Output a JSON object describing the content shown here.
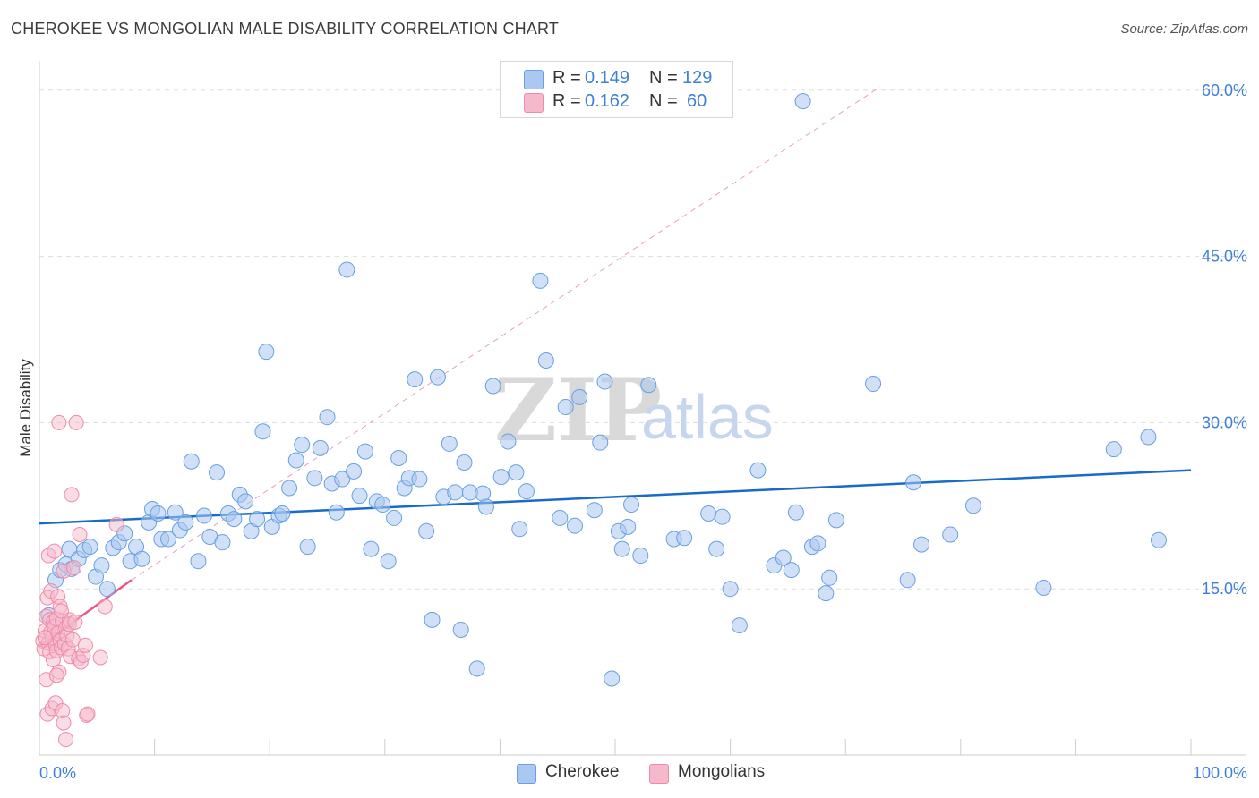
{
  "header": {
    "title": "CHEROKEE VS MONGOLIAN MALE DISABILITY CORRELATION CHART",
    "source": "Source: ZipAtlas.com"
  },
  "watermark": {
    "zip": "ZIP",
    "atlas": "atlas"
  },
  "legend": {
    "rows": [
      {
        "r_label": "R =",
        "r_value": "0.149",
        "n_label": "N =",
        "n_value": "129"
      },
      {
        "r_label": "R =",
        "r_value": "0.162",
        "n_label": "N =",
        "n_value": "60"
      }
    ]
  },
  "bottom_legend": {
    "series_1": "Cherokee",
    "series_2": "Mongolians"
  },
  "colors": {
    "cherokee_fill": "#aac8f0",
    "cherokee_stroke": "#6a9fe0",
    "cherokee_line": "#1a6acc",
    "mongolian_fill": "#f6b9cc",
    "mongolian_stroke": "#ee8aaa",
    "mongolian_line": "#e8558a",
    "grid": "#dddddd",
    "tick_label": "#3f7fd8"
  },
  "chart_data": {
    "type": "scatter",
    "title": "CHEROKEE VS MONGOLIAN MALE DISABILITY CORRELATION CHART",
    "xlabel": "",
    "ylabel": "Male Disability",
    "xlim": [
      0,
      100
    ],
    "ylim": [
      0,
      62
    ],
    "x_tick_labels": [
      "0.0%",
      "100.0%"
    ],
    "y_ticks": [
      15,
      30,
      45,
      60
    ],
    "y_tick_labels": [
      "15.0%",
      "30.0%",
      "45.0%",
      "60.0%"
    ],
    "series": [
      {
        "name": "Cherokee",
        "R": 0.149,
        "N": 129,
        "trend": {
          "x": [
            0,
            100
          ],
          "y": [
            20.9,
            25.7
          ],
          "style": "solid"
        },
        "points": [
          [
            0.8,
            12.6
          ],
          [
            1.4,
            15.8
          ],
          [
            1.8,
            16.7
          ],
          [
            2.3,
            17.2
          ],
          [
            2.6,
            18.6
          ],
          [
            2.8,
            16.8
          ],
          [
            3.4,
            17.7
          ],
          [
            3.9,
            18.5
          ],
          [
            4.4,
            18.8
          ],
          [
            4.9,
            16.1
          ],
          [
            5.4,
            17.1
          ],
          [
            5.9,
            15.0
          ],
          [
            6.4,
            18.7
          ],
          [
            6.9,
            19.2
          ],
          [
            7.4,
            20.0
          ],
          [
            7.9,
            17.5
          ],
          [
            8.4,
            18.8
          ],
          [
            8.9,
            17.7
          ],
          [
            9.5,
            21.0
          ],
          [
            9.8,
            22.2
          ],
          [
            10.3,
            21.8
          ],
          [
            10.6,
            19.5
          ],
          [
            11.2,
            19.5
          ],
          [
            11.8,
            21.9
          ],
          [
            12.2,
            20.3
          ],
          [
            12.7,
            21.0
          ],
          [
            13.2,
            26.5
          ],
          [
            13.8,
            17.5
          ],
          [
            14.3,
            21.6
          ],
          [
            14.8,
            19.7
          ],
          [
            15.4,
            25.5
          ],
          [
            15.9,
            19.2
          ],
          [
            16.4,
            21.8
          ],
          [
            16.9,
            21.3
          ],
          [
            17.4,
            23.5
          ],
          [
            17.9,
            22.9
          ],
          [
            18.4,
            20.2
          ],
          [
            18.9,
            21.3
          ],
          [
            19.4,
            29.2
          ],
          [
            19.7,
            36.4
          ],
          [
            20.2,
            20.6
          ],
          [
            20.8,
            21.6
          ],
          [
            21.1,
            21.8
          ],
          [
            21.7,
            24.1
          ],
          [
            22.3,
            26.6
          ],
          [
            22.8,
            28.0
          ],
          [
            23.3,
            18.8
          ],
          [
            23.9,
            25.0
          ],
          [
            24.4,
            27.7
          ],
          [
            25.0,
            30.5
          ],
          [
            25.4,
            24.5
          ],
          [
            25.8,
            21.9
          ],
          [
            26.3,
            24.9
          ],
          [
            26.7,
            43.8
          ],
          [
            27.3,
            25.6
          ],
          [
            27.8,
            23.4
          ],
          [
            28.3,
            27.4
          ],
          [
            28.8,
            18.6
          ],
          [
            29.3,
            22.9
          ],
          [
            29.8,
            22.6
          ],
          [
            30.3,
            17.5
          ],
          [
            30.8,
            21.4
          ],
          [
            31.2,
            26.8
          ],
          [
            31.7,
            24.1
          ],
          [
            32.1,
            25.0
          ],
          [
            32.6,
            33.9
          ],
          [
            33.0,
            24.9
          ],
          [
            33.6,
            20.2
          ],
          [
            34.1,
            12.2
          ],
          [
            34.6,
            34.1
          ],
          [
            35.1,
            23.3
          ],
          [
            35.6,
            28.1
          ],
          [
            36.1,
            23.7
          ],
          [
            36.6,
            11.3
          ],
          [
            36.9,
            26.4
          ],
          [
            37.4,
            23.7
          ],
          [
            38.0,
            7.8
          ],
          [
            38.5,
            23.6
          ],
          [
            38.8,
            22.4
          ],
          [
            39.4,
            33.3
          ],
          [
            40.1,
            25.1
          ],
          [
            40.7,
            28.3
          ],
          [
            41.4,
            25.5
          ],
          [
            41.7,
            20.4
          ],
          [
            42.3,
            23.8
          ],
          [
            43.5,
            42.8
          ],
          [
            44.0,
            35.6
          ],
          [
            45.2,
            21.4
          ],
          [
            45.7,
            31.4
          ],
          [
            46.5,
            20.7
          ],
          [
            46.9,
            32.3
          ],
          [
            48.2,
            22.1
          ],
          [
            48.7,
            28.2
          ],
          [
            49.1,
            33.7
          ],
          [
            49.7,
            6.9
          ],
          [
            50.3,
            20.2
          ],
          [
            50.6,
            18.6
          ],
          [
            51.1,
            20.6
          ],
          [
            51.4,
            22.6
          ],
          [
            52.2,
            18.0
          ],
          [
            52.9,
            33.4
          ],
          [
            55.1,
            19.5
          ],
          [
            56.0,
            19.6
          ],
          [
            58.1,
            21.8
          ],
          [
            58.8,
            18.6
          ],
          [
            59.3,
            21.5
          ],
          [
            60.0,
            15.0
          ],
          [
            60.8,
            11.7
          ],
          [
            62.4,
            25.7
          ],
          [
            63.8,
            17.1
          ],
          [
            64.6,
            17.8
          ],
          [
            65.3,
            16.7
          ],
          [
            65.7,
            21.9
          ],
          [
            66.3,
            59.0
          ],
          [
            67.1,
            18.8
          ],
          [
            67.6,
            19.1
          ],
          [
            68.3,
            14.6
          ],
          [
            68.6,
            16.0
          ],
          [
            69.2,
            21.2
          ],
          [
            72.4,
            33.5
          ],
          [
            75.4,
            15.8
          ],
          [
            75.9,
            24.6
          ],
          [
            76.6,
            19.0
          ],
          [
            79.1,
            19.9
          ],
          [
            81.1,
            22.5
          ],
          [
            87.2,
            15.1
          ],
          [
            93.3,
            27.6
          ],
          [
            96.3,
            28.7
          ],
          [
            97.2,
            19.4
          ]
        ]
      },
      {
        "name": "Mongolians",
        "R": 0.162,
        "N": 60,
        "trend": {
          "x": [
            0,
            8
          ],
          "y": [
            9.8,
            15.8
          ],
          "style": "solid"
        },
        "trend_extension": {
          "x": [
            8,
            73
          ],
          "y": [
            15.8,
            60.3
          ],
          "style": "dashed"
        },
        "points": [
          [
            0.3,
            10.3
          ],
          [
            0.4,
            9.6
          ],
          [
            0.5,
            11.2
          ],
          [
            0.6,
            12.5
          ],
          [
            0.6,
            6.8
          ],
          [
            0.7,
            3.7
          ],
          [
            0.7,
            14.2
          ],
          [
            0.8,
            10.1
          ],
          [
            0.8,
            18.0
          ],
          [
            0.9,
            9.3
          ],
          [
            0.9,
            12.2
          ],
          [
            1.0,
            11.1
          ],
          [
            1.0,
            14.8
          ],
          [
            1.1,
            4.2
          ],
          [
            1.1,
            10.6
          ],
          [
            1.2,
            12.0
          ],
          [
            1.2,
            8.6
          ],
          [
            1.3,
            18.4
          ],
          [
            1.3,
            11.6
          ],
          [
            1.4,
            10.0
          ],
          [
            1.4,
            4.7
          ],
          [
            1.5,
            12.3
          ],
          [
            1.5,
            9.4
          ],
          [
            1.6,
            14.3
          ],
          [
            1.6,
            11.0
          ],
          [
            1.7,
            7.5
          ],
          [
            1.7,
            30.0
          ],
          [
            1.8,
            10.3
          ],
          [
            1.8,
            13.4
          ],
          [
            1.9,
            9.7
          ],
          [
            2.0,
            12.1
          ],
          [
            2.0,
            4.0
          ],
          [
            2.1,
            16.6
          ],
          [
            2.1,
            2.9
          ],
          [
            2.2,
            10.0
          ],
          [
            2.3,
            1.4
          ],
          [
            2.3,
            11.5
          ],
          [
            2.4,
            10.8
          ],
          [
            2.5,
            9.6
          ],
          [
            2.6,
            12.2
          ],
          [
            2.7,
            8.9
          ],
          [
            2.8,
            23.5
          ],
          [
            2.9,
            10.4
          ],
          [
            3.0,
            16.9
          ],
          [
            3.2,
            30.0
          ],
          [
            3.4,
            8.7
          ],
          [
            3.5,
            19.9
          ],
          [
            3.6,
            8.4
          ],
          [
            3.8,
            9.0
          ],
          [
            4.0,
            9.9
          ],
          [
            4.1,
            3.6
          ],
          [
            4.2,
            3.7
          ],
          [
            5.3,
            8.8
          ],
          [
            5.7,
            13.4
          ],
          [
            6.7,
            20.8
          ],
          [
            1.5,
            7.2
          ],
          [
            2.6,
            11.8
          ],
          [
            1.9,
            13.0
          ],
          [
            0.5,
            10.6
          ],
          [
            3.1,
            12.0
          ]
        ]
      }
    ]
  }
}
